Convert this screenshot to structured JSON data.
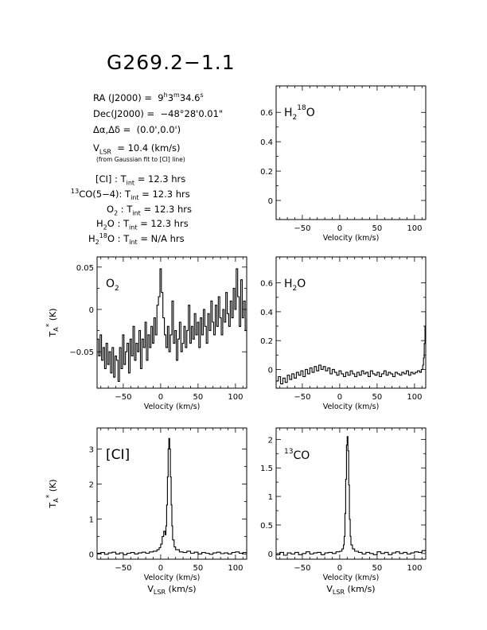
{
  "title": "G269.2−1.1",
  "info": {
    "ra_label": "RA (J2000) =",
    "ra_h": "9",
    "ra_m": "3",
    "ra_s": "34.6",
    "ra_h_unit": "h",
    "ra_m_unit": "m",
    "ra_s_unit": "s",
    "dec_label": "Dec(J2000) =",
    "dec_value": "−48°28'0.01\"",
    "offset_label": "Δα,Δδ =",
    "offset_value": "(0.0',0.0')",
    "vlsr_v": "V",
    "vlsr_sub": "LSR",
    "vlsr_value": "= 10.4 (km/s)",
    "vlsr_note": "(from Gaussian fit to [CI] line)",
    "tint_rows": [
      {
        "line": "[CI] :",
        "value": "= 12.3 hrs"
      },
      {
        "line": "CO(5−4):",
        "sup": "13",
        "value": "= 12.3 hrs"
      },
      {
        "line": "O",
        "sub": "2",
        "tail": " :",
        "value": "= 12.3 hrs"
      },
      {
        "line": "H",
        "sub": "2",
        "tail": "O :",
        "value": "= 12.3 hrs"
      },
      {
        "line": "H",
        "sub": "2",
        "sup2": "18",
        "tail": "O :",
        "value": "= N/A hrs"
      }
    ],
    "tint_T": "T",
    "tint_sub": "int"
  },
  "axis_labels": {
    "velocity": "Velocity (km/s)",
    "vlsr_V": "V",
    "vlsr_sub": "LSR",
    "vlsr_tail": "(km/s)",
    "ta_T": "T",
    "ta_sub": "A",
    "ta_sup": "*",
    "ta_tail": "(K)"
  },
  "chart_data": [
    {
      "id": "h2-18o",
      "type": "line",
      "label": "H218O",
      "xlim": [
        -85,
        115
      ],
      "ylim": [
        -0.13,
        0.78
      ],
      "xticks": [
        -50,
        0,
        50,
        100
      ],
      "yticks": [
        0,
        0.2,
        0.4,
        0.6
      ],
      "ytick_labels": [
        "0",
        "0.2",
        "0.4",
        "0.6"
      ],
      "series": [
        {
          "x": [],
          "y": []
        }
      ]
    },
    {
      "id": "o2",
      "type": "line",
      "label": "O2",
      "ylabel": "TA* (K)",
      "xlim": [
        -85,
        115
      ],
      "ylim": [
        -0.093,
        0.062
      ],
      "xticks": [
        -50,
        0,
        50,
        100
      ],
      "yticks": [
        -0.05,
        0,
        0.05
      ],
      "ytick_labels": [
        "−0.05",
        "0",
        "0.05"
      ],
      "series": [
        {
          "x": [
            -85,
            -83,
            -81,
            -79,
            -77,
            -75,
            -73,
            -71,
            -69,
            -67,
            -65,
            -63,
            -61,
            -59,
            -57,
            -55,
            -53,
            -51,
            -49,
            -47,
            -45,
            -43,
            -41,
            -39,
            -37,
            -35,
            -33,
            -31,
            -29,
            -27,
            -25,
            -23,
            -21,
            -19,
            -17,
            -15,
            -13,
            -11,
            -9,
            -7,
            -5,
            -3,
            -1,
            1,
            3,
            5,
            7,
            9,
            11,
            13,
            15,
            17,
            19,
            21,
            23,
            25,
            27,
            29,
            31,
            33,
            35,
            37,
            39,
            41,
            43,
            45,
            47,
            49,
            51,
            53,
            55,
            57,
            59,
            61,
            63,
            65,
            67,
            69,
            71,
            73,
            75,
            77,
            79,
            81,
            83,
            85,
            87,
            89,
            91,
            93,
            95,
            97,
            99,
            101,
            103,
            105,
            107,
            109,
            111,
            113,
            115
          ],
          "y": [
            -0.035,
            -0.055,
            -0.03,
            -0.06,
            -0.045,
            -0.07,
            -0.04,
            -0.065,
            -0.05,
            -0.075,
            -0.045,
            -0.08,
            -0.055,
            -0.06,
            -0.085,
            -0.045,
            -0.07,
            -0.03,
            -0.065,
            -0.05,
            -0.04,
            -0.075,
            -0.035,
            -0.055,
            -0.02,
            -0.06,
            -0.04,
            -0.05,
            -0.025,
            -0.07,
            -0.035,
            -0.045,
            -0.015,
            -0.06,
            -0.03,
            -0.045,
            -0.02,
            -0.04,
            -0.01,
            -0.03,
            0.005,
            0.015,
            0.048,
            0.02,
            -0.01,
            -0.03,
            -0.045,
            -0.02,
            -0.05,
            -0.03,
            0.01,
            -0.04,
            -0.025,
            -0.06,
            -0.035,
            -0.015,
            -0.05,
            -0.04,
            -0.02,
            -0.045,
            -0.025,
            0.005,
            -0.04,
            -0.02,
            -0.035,
            -0.005,
            -0.03,
            -0.015,
            -0.045,
            -0.01,
            -0.03,
            0.0,
            -0.02,
            -0.04,
            -0.005,
            -0.025,
            0.01,
            -0.015,
            -0.03,
            0.005,
            -0.02,
            0.015,
            -0.01,
            -0.03,
            0.0,
            -0.015,
            0.02,
            -0.005,
            -0.02,
            0.01,
            -0.01,
            0.025,
            0.0,
            0.048,
            0.015,
            -0.02,
            0.035,
            -0.01,
            0.01,
            -0.025,
            -0.01
          ]
        }
      ]
    },
    {
      "id": "h2o",
      "type": "line",
      "label": "H2O",
      "xlim": [
        -85,
        115
      ],
      "ylim": [
        -0.13,
        0.78
      ],
      "xticks": [
        -50,
        0,
        50,
        100
      ],
      "yticks": [
        0,
        0.2,
        0.4,
        0.6
      ],
      "ytick_labels": [
        "0",
        "0.2",
        "0.4",
        "0.6"
      ],
      "series": [
        {
          "x": [
            -85,
            -82,
            -79,
            -76,
            -73,
            -70,
            -67,
            -64,
            -61,
            -58,
            -55,
            -52,
            -49,
            -46,
            -43,
            -40,
            -37,
            -34,
            -31,
            -28,
            -25,
            -22,
            -19,
            -16,
            -13,
            -10,
            -7,
            -4,
            -1,
            2,
            5,
            8,
            11,
            14,
            17,
            20,
            23,
            26,
            29,
            32,
            35,
            38,
            41,
            44,
            47,
            50,
            53,
            56,
            59,
            62,
            65,
            68,
            71,
            74,
            77,
            80,
            83,
            86,
            89,
            92,
            95,
            98,
            101,
            104,
            107,
            109,
            111,
            112,
            113,
            114,
            115
          ],
          "y": [
            -0.08,
            -0.05,
            -0.1,
            -0.06,
            -0.09,
            -0.04,
            -0.07,
            -0.03,
            -0.06,
            -0.02,
            -0.04,
            -0.01,
            -0.05,
            0.0,
            -0.03,
            0.01,
            -0.02,
            0.02,
            -0.01,
            0.03,
            0.0,
            0.02,
            -0.01,
            0.01,
            -0.03,
            0.0,
            -0.02,
            -0.04,
            -0.01,
            -0.03,
            -0.05,
            -0.02,
            -0.04,
            -0.01,
            -0.03,
            -0.05,
            -0.02,
            -0.04,
            -0.01,
            -0.03,
            -0.02,
            -0.05,
            -0.01,
            -0.03,
            -0.04,
            -0.02,
            -0.05,
            -0.03,
            -0.01,
            -0.04,
            -0.02,
            -0.03,
            -0.05,
            -0.02,
            -0.03,
            -0.04,
            -0.02,
            -0.03,
            -0.01,
            -0.04,
            -0.02,
            -0.03,
            -0.02,
            -0.01,
            -0.02,
            0.0,
            0.03,
            0.08,
            0.18,
            0.3,
            0.4
          ]
        }
      ]
    },
    {
      "id": "ci",
      "type": "line",
      "label": "[CI]",
      "ylabel": "TA* (K)",
      "xlim": [
        -85,
        115
      ],
      "ylim": [
        -0.15,
        3.6
      ],
      "xticks": [
        -50,
        0,
        50,
        100
      ],
      "yticks": [
        0,
        1,
        2,
        3
      ],
      "ytick_labels": [
        "0",
        "1",
        "2",
        "3"
      ],
      "series": [
        {
          "x": [
            -85,
            -80,
            -75,
            -70,
            -65,
            -60,
            -55,
            -50,
            -45,
            -40,
            -35,
            -30,
            -25,
            -20,
            -15,
            -10,
            -5,
            -2,
            0,
            2,
            4,
            6,
            7,
            8,
            9,
            10,
            11,
            12,
            13,
            14,
            15,
            16,
            18,
            20,
            25,
            30,
            35,
            40,
            45,
            50,
            55,
            60,
            65,
            70,
            75,
            80,
            85,
            90,
            95,
            100,
            105,
            110,
            115
          ],
          "y": [
            0.02,
            0.04,
            -0.01,
            0.03,
            0.05,
            0.0,
            0.03,
            -0.02,
            0.02,
            0.04,
            0.0,
            0.03,
            0.05,
            0.02,
            0.06,
            0.08,
            0.12,
            0.18,
            0.28,
            0.5,
            0.65,
            0.55,
            0.8,
            1.4,
            2.2,
            3.0,
            3.3,
            3.0,
            2.2,
            1.4,
            0.8,
            0.4,
            0.2,
            0.12,
            0.06,
            0.04,
            0.08,
            0.02,
            0.05,
            0.0,
            0.04,
            0.02,
            -0.01,
            0.03,
            0.05,
            0.01,
            0.03,
            0.0,
            0.04,
            0.06,
            0.02,
            0.04,
            0.0
          ]
        }
      ]
    },
    {
      "id": "13co",
      "type": "line",
      "label": "13CO",
      "xlim": [
        -85,
        115
      ],
      "ylim": [
        -0.1,
        2.2
      ],
      "xticks": [
        -50,
        0,
        50,
        100
      ],
      "yticks": [
        0,
        0.5,
        1,
        1.5,
        2
      ],
      "ytick_labels": [
        "0",
        "0.5",
        "1",
        "1.5",
        "2"
      ],
      "series": [
        {
          "x": [
            -85,
            -80,
            -75,
            -70,
            -65,
            -60,
            -55,
            -50,
            -45,
            -40,
            -35,
            -30,
            -25,
            -20,
            -15,
            -10,
            -5,
            0,
            3,
            5,
            6,
            7,
            8,
            9,
            10,
            11,
            12,
            13,
            14,
            15,
            17,
            20,
            25,
            30,
            35,
            40,
            45,
            50,
            55,
            60,
            65,
            70,
            75,
            80,
            85,
            90,
            95,
            100,
            105,
            110,
            115
          ],
          "y": [
            -0.02,
            0.02,
            -0.03,
            0.01,
            -0.01,
            0.02,
            -0.02,
            0.0,
            0.03,
            -0.01,
            0.01,
            0.02,
            -0.02,
            0.01,
            0.02,
            0.0,
            0.03,
            0.04,
            0.08,
            0.15,
            0.3,
            0.7,
            1.3,
            1.9,
            2.05,
            1.8,
            1.2,
            0.6,
            0.3,
            0.15,
            0.08,
            0.04,
            0.02,
            -0.01,
            0.02,
            0.0,
            -0.02,
            0.03,
            0.0,
            0.02,
            -0.02,
            0.01,
            0.03,
            0.0,
            0.02,
            -0.01,
            0.01,
            0.03,
            0.02,
            0.05,
            0.04
          ]
        }
      ]
    }
  ]
}
